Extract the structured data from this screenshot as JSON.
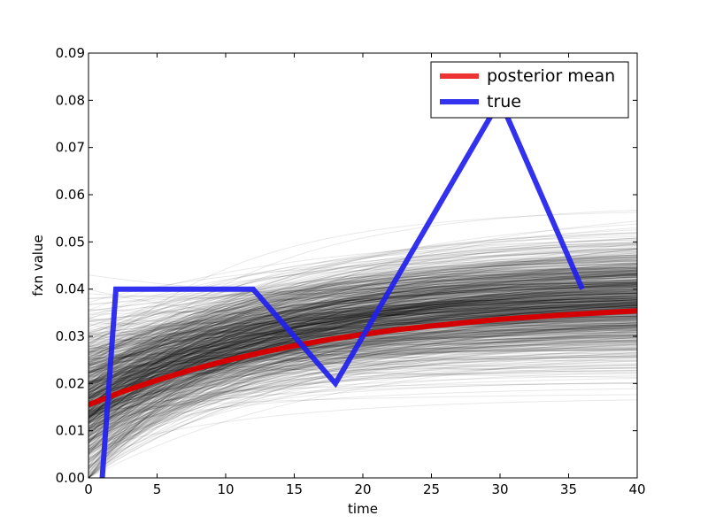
{
  "chart_data": {
    "type": "line",
    "title": "",
    "xlabel": "time",
    "ylabel": "fxn value",
    "xlim": [
      0,
      40
    ],
    "ylim": [
      0,
      0.09
    ],
    "x_ticks": [
      "0",
      "5",
      "10",
      "15",
      "20",
      "25",
      "30",
      "35",
      "40"
    ],
    "y_ticks": [
      "0.00",
      "0.01",
      "0.02",
      "0.03",
      "0.04",
      "0.05",
      "0.06",
      "0.07",
      "0.08",
      "0.09"
    ],
    "grid": false,
    "legend_position": "top-right",
    "series": [
      {
        "name": "posterior mean",
        "color": "#d40000",
        "x": [
          0,
          2.5,
          5,
          7.5,
          10,
          12.5,
          15,
          17.5,
          20,
          22.5,
          25,
          27.5,
          30,
          32.5,
          35,
          37.5,
          40
        ],
        "y": [
          0.0155,
          0.0183,
          0.0207,
          0.0229,
          0.0248,
          0.0265,
          0.028,
          0.0293,
          0.0304,
          0.0314,
          0.0322,
          0.0329,
          0.0336,
          0.0341,
          0.0346,
          0.035,
          0.0354
        ]
      },
      {
        "name": "true",
        "color": "#2020ee",
        "x": [
          1,
          2,
          12,
          18,
          30,
          36
        ],
        "y": [
          0.0,
          0.04,
          0.04,
          0.02,
          0.08,
          0.04
        ]
      }
    ],
    "posterior_samples": {
      "color": "#000000",
      "count": 900,
      "start_range": [
        0.0,
        0.043
      ],
      "end_range": [
        0.015,
        0.058
      ]
    },
    "legend": [
      {
        "label": "posterior mean",
        "color": "#ee3333"
      },
      {
        "label": "true",
        "color": "#3333ee"
      }
    ]
  }
}
